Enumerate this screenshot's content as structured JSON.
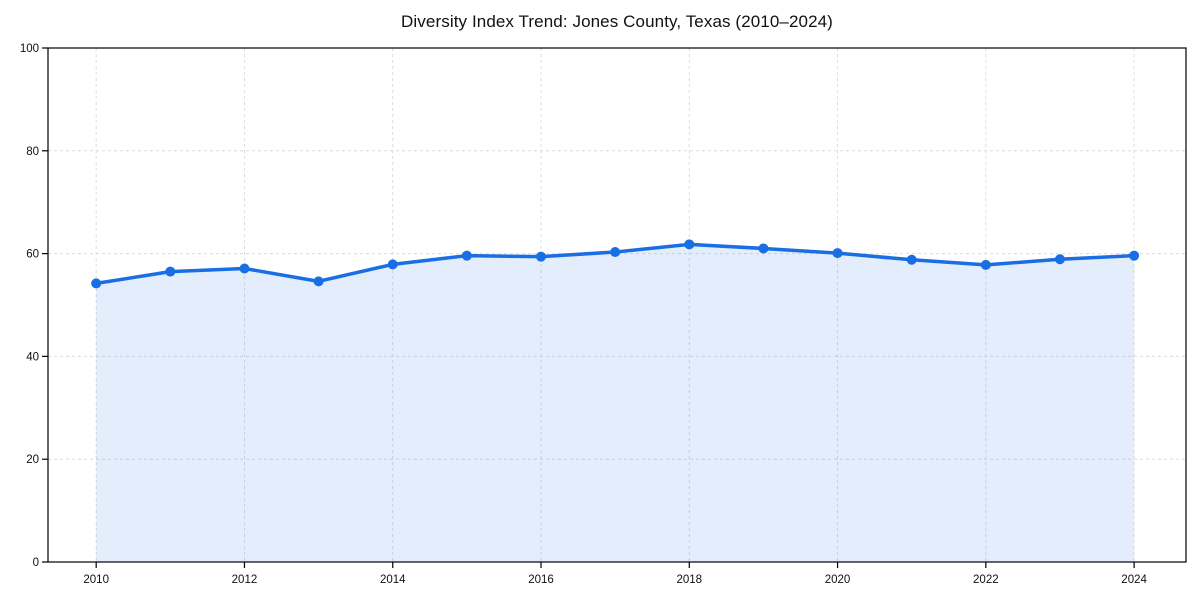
{
  "chart_data": {
    "type": "area",
    "title": "Diversity Index Trend: Jones County, Texas (2010–2024)",
    "series_name": "Diversity Index",
    "x": [
      2010,
      2011,
      2012,
      2013,
      2014,
      2015,
      2016,
      2017,
      2018,
      2019,
      2020,
      2021,
      2022,
      2023,
      2024
    ],
    "values": [
      54.2,
      56.5,
      57.1,
      54.6,
      57.9,
      59.6,
      59.4,
      60.3,
      61.8,
      61.0,
      60.1,
      58.8,
      57.8,
      58.9,
      59.6
    ],
    "xlabel": "",
    "ylabel": "",
    "xlim": [
      2009.35,
      2024.7
    ],
    "ylim": [
      0,
      100
    ],
    "xticks": [
      2010,
      2012,
      2014,
      2016,
      2018,
      2020,
      2022,
      2024
    ],
    "yticks": [
      0,
      20,
      40,
      60,
      80,
      100
    ],
    "grid": true,
    "grid_style": "dashed",
    "legend": "none",
    "colors": {
      "line": "#1a6ee3",
      "fill_opacity": 0.12,
      "grid": "#dcdcdc",
      "spine": "#000000",
      "tick_label": "#111111",
      "background": "#ffffff"
    }
  }
}
